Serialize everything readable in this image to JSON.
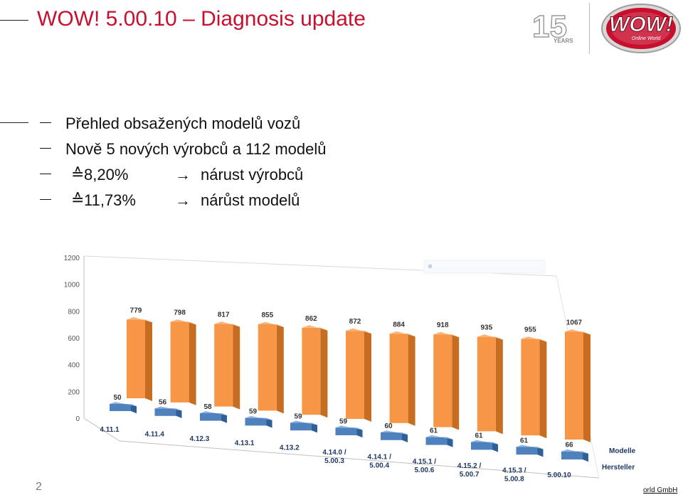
{
  "slide": {
    "title": "WOW! 5.00.10 – Diagnosis update",
    "page_number": "2",
    "footer": "orld GmbH",
    "logo_text": "Online World",
    "logo_brand": "WOW!",
    "anniversary_years": "15",
    "anniversary_label": "YEARS"
  },
  "bullets": [
    {
      "text": "Přehled obsažených modelů vozů"
    },
    {
      "text": "Nově 5 nových výrobců a 112 modelů"
    },
    {
      "symbol": "≙",
      "value": "8,20%",
      "arrow": "→",
      "label": "nárust výrobců"
    },
    {
      "symbol": "≙",
      "value": "11,73%",
      "arrow": "→",
      "label": "nárůst modelů"
    }
  ],
  "colors": {
    "title": "#c8102e",
    "modelle": "#f79646",
    "hersteller": "#4f81bd"
  },
  "chart_data": {
    "type": "bar",
    "categories": [
      "4.11.1",
      "4.11.4",
      "4.12.3",
      "4.13.1",
      "4.13.2",
      "4.14.0 / 5.00.3",
      "4.14.1 / 5.00.4",
      "4.15.1 / 5.00.6",
      "4.15.2 / 5.00.7",
      "4.15.3 / 5.00.8",
      "5.00.10"
    ],
    "y_ticks": [
      "1200",
      "1000",
      "800",
      "600",
      "400",
      "200",
      "0"
    ],
    "ylim": [
      0,
      1200
    ],
    "series": [
      {
        "name": "Modelle",
        "values": [
          779,
          798,
          817,
          855,
          862,
          872,
          884,
          918,
          935,
          955,
          1067
        ]
      },
      {
        "name": "Hersteller",
        "values": [
          50,
          56,
          58,
          59,
          59,
          59,
          60,
          61,
          61,
          61,
          66
        ]
      }
    ],
    "legend_position": "right"
  }
}
